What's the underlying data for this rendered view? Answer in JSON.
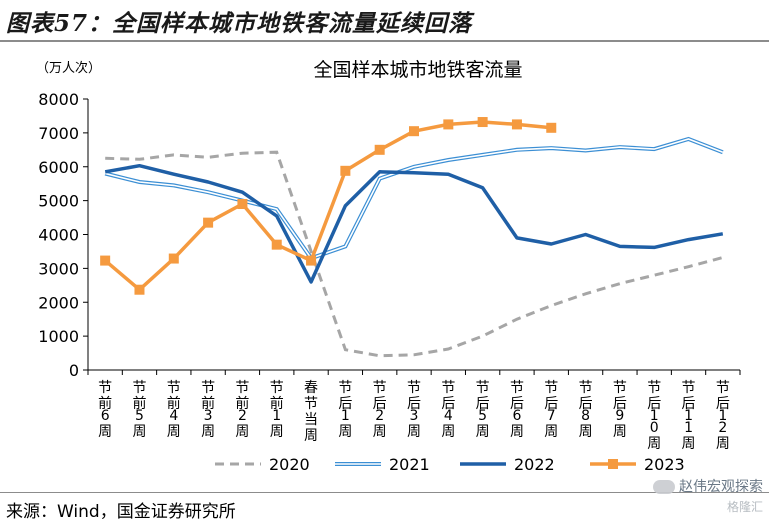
{
  "figure_title": "图表57：全国样本城市地铁客流量延续回落",
  "source_text": "来源：Wind，国金证券研究所",
  "watermark": {
    "text": "赵伟宏观探索",
    "sub": "格隆汇",
    "icon": "wechat-icon"
  },
  "chart_data": {
    "type": "line",
    "title": "全国样本城市地铁客流量",
    "unit_label": "（万人次）",
    "categories": [
      "节前6周",
      "节前5周",
      "节前4周",
      "节前3周",
      "节前2周",
      "节前1周",
      "春节当周",
      "节后1周",
      "节后2周",
      "节后3周",
      "节后4周",
      "节后5周",
      "节后6周",
      "节后7周",
      "节后8周",
      "节后9周",
      "节后10周",
      "节后11周",
      "节后12周"
    ],
    "ylim": [
      0,
      8000
    ],
    "yticks": [
      0,
      1000,
      2000,
      3000,
      4000,
      5000,
      6000,
      7000,
      8000
    ],
    "grid": false,
    "legend_position": "bottom",
    "series": [
      {
        "name": "2020",
        "style": "dashed",
        "color": "#a6a6a6",
        "values": [
          6250,
          6220,
          6350,
          6280,
          6400,
          6430,
          3500,
          600,
          420,
          450,
          620,
          1000,
          1500,
          1900,
          2250,
          2550,
          2800,
          3050,
          3320
        ]
      },
      {
        "name": "2021",
        "style": "double",
        "color": "#3c8fd4",
        "values": [
          5800,
          5550,
          5450,
          5250,
          5000,
          4750,
          3300,
          3650,
          5650,
          6000,
          6200,
          6350,
          6500,
          6550,
          6480,
          6580,
          6520,
          6820,
          6430
        ]
      },
      {
        "name": "2022",
        "style": "thick",
        "color": "#1f5fa6",
        "values": [
          5850,
          6030,
          5780,
          5550,
          5250,
          4550,
          2600,
          4850,
          5850,
          5820,
          5780,
          5380,
          3900,
          3720,
          4000,
          3650,
          3620,
          3850,
          4020
        ]
      },
      {
        "name": "2023",
        "style": "marker",
        "color": "#f59a3f",
        "values": [
          3230,
          2370,
          3290,
          4350,
          4900,
          3700,
          3230,
          5880,
          6500,
          7050,
          7250,
          7320,
          7250,
          7150,
          null,
          null,
          null,
          null,
          null
        ]
      }
    ]
  }
}
